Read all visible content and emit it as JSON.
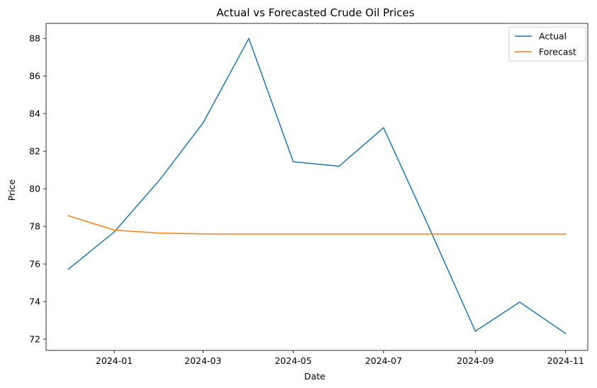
{
  "chart_data": {
    "type": "line",
    "title": "Actual vs Forecasted Crude Oil Prices",
    "xlabel": "Date",
    "ylabel": "Price",
    "x": [
      "2023-12-01",
      "2024-01-01",
      "2024-02-01",
      "2024-03-01",
      "2024-04-01",
      "2024-05-01",
      "2024-06-01",
      "2024-07-01",
      "2024-08-01",
      "2024-09-01",
      "2024-10-01",
      "2024-11-01"
    ],
    "series": [
      {
        "name": "Actual",
        "color": "#1f77b4",
        "values": [
          75.72,
          77.7,
          80.5,
          83.5,
          88.0,
          81.44,
          81.2,
          83.25,
          77.9,
          72.42,
          73.97,
          72.3
        ]
      },
      {
        "name": "Forecast",
        "color": "#ff7f0e",
        "values": [
          78.57,
          77.8,
          77.64,
          77.6,
          77.59,
          77.59,
          77.59,
          77.59,
          77.59,
          77.59,
          77.59,
          77.59
        ]
      }
    ],
    "xlim": [
      "2023-11-16",
      "2024-11-16"
    ],
    "ylim": [
      71.4,
      88.8
    ],
    "xticks": [
      "2024-01-01",
      "2024-03-01",
      "2024-05-01",
      "2024-07-01",
      "2024-09-01",
      "2024-11-01"
    ],
    "xtick_labels": [
      "2024-01",
      "2024-03",
      "2024-05",
      "2024-07",
      "2024-09",
      "2024-11"
    ],
    "yticks": [
      72,
      74,
      76,
      78,
      80,
      82,
      84,
      86,
      88
    ],
    "grid": false,
    "legend": "top-right"
  }
}
